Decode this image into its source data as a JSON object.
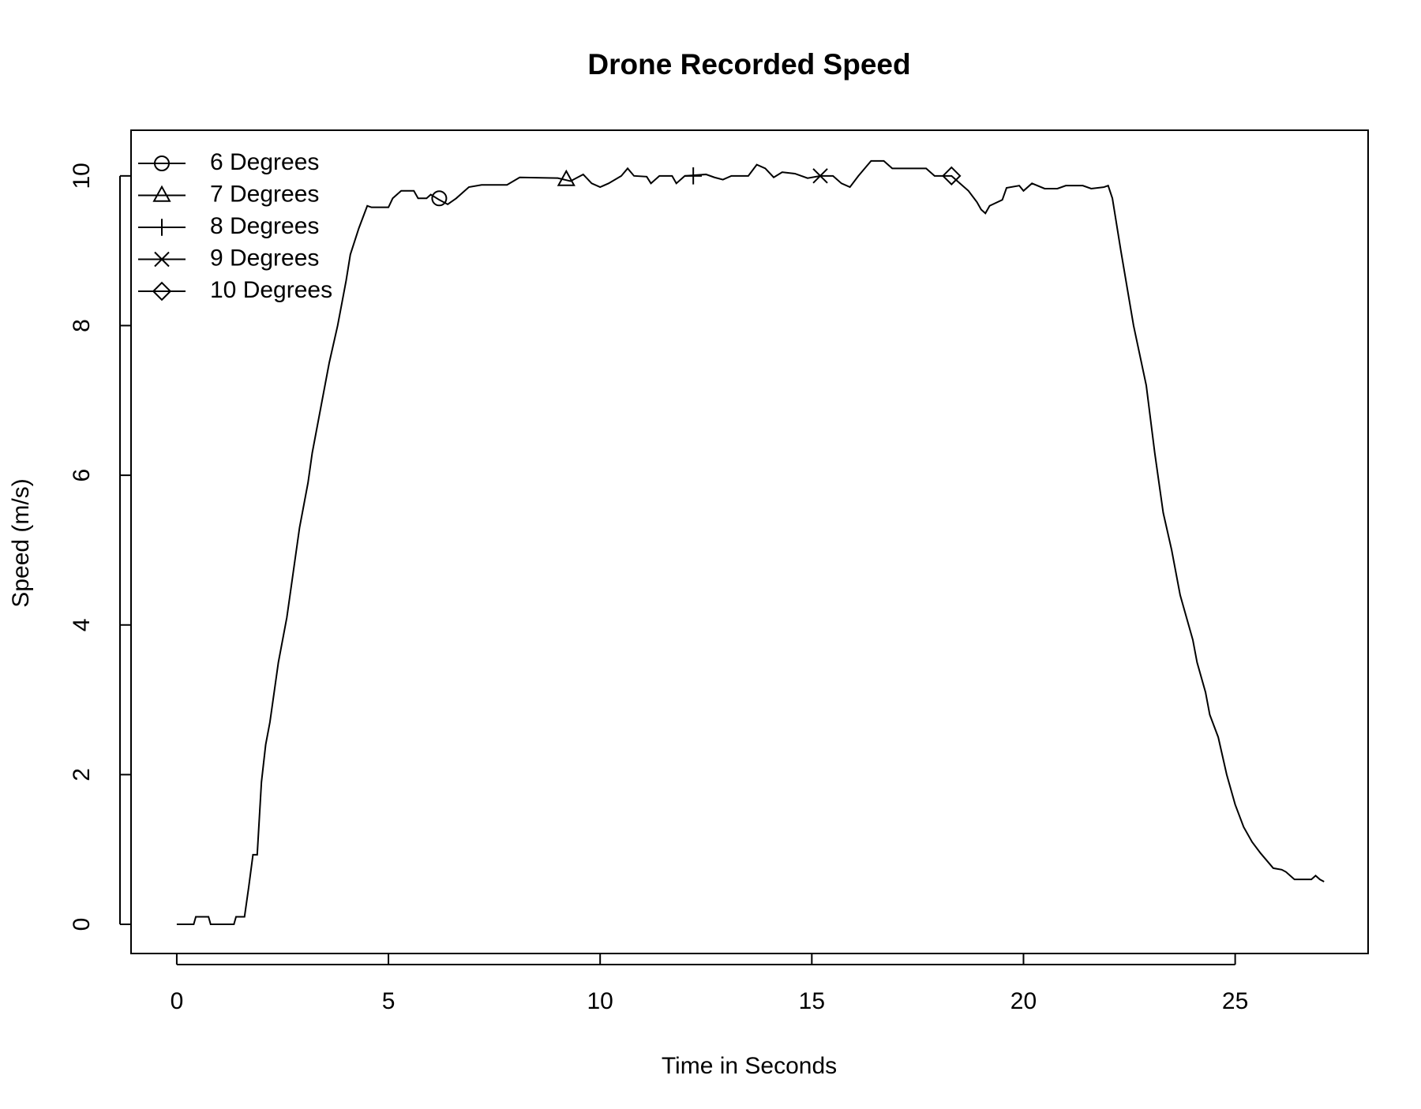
{
  "chart_data": {
    "type": "line",
    "title": "Drone Recorded Speed",
    "x_label": "Time in Seconds",
    "y_label": "Speed (m/s)",
    "color": "#000000",
    "x": [
      0,
      0.4,
      0.45,
      0.75,
      0.8,
      1.35,
      1.4,
      1.6,
      1.7,
      1.8,
      1.9,
      2.0,
      2.1,
      2.2,
      2.3,
      2.4,
      2.5,
      2.6,
      2.7,
      2.8,
      2.9,
      3.0,
      3.1,
      3.2,
      3.4,
      3.6,
      3.8,
      4.0,
      4.1,
      4.3,
      4.5,
      4.6,
      5.0,
      5.1,
      5.3,
      5.6,
      5.7,
      5.9,
      6.0,
      6.2,
      6.4,
      6.6,
      6.9,
      7.2,
      7.8,
      8.1,
      9.0,
      9.3,
      9.6,
      9.8,
      10.0,
      10.2,
      10.5,
      10.65,
      10.8,
      11.1,
      11.2,
      11.4,
      11.7,
      11.8,
      12.0,
      12.5,
      12.7,
      12.9,
      13.1,
      13.5,
      13.7,
      13.9,
      14.1,
      14.3,
      14.6,
      14.9,
      15.2,
      15.5,
      15.7,
      15.9,
      16.1,
      16.4,
      16.7,
      16.9,
      17.7,
      17.9,
      18.3,
      18.5,
      18.7,
      18.9,
      19.0,
      19.1,
      19.2,
      19.5,
      19.6,
      19.9,
      20.0,
      20.2,
      20.5,
      20.8,
      21.0,
      21.4,
      21.6,
      21.9,
      22.0,
      22.1,
      22.3,
      22.6,
      22.9,
      23.1,
      23.2,
      23.3,
      23.5,
      23.7,
      23.9,
      24.0,
      24.1,
      24.3,
      24.4,
      24.6,
      24.8,
      25.0,
      25.2,
      25.4,
      25.6,
      25.9,
      26.1,
      26.2,
      26.4,
      26.8,
      26.9,
      27.0,
      27.1
    ],
    "values": [
      0,
      0,
      0.1,
      0.1,
      0,
      0,
      0.1,
      0.1,
      0.5,
      0.93,
      0.93,
      1.9,
      2.4,
      2.7,
      3.1,
      3.5,
      3.8,
      4.1,
      4.5,
      4.9,
      5.3,
      5.6,
      5.9,
      6.3,
      6.9,
      7.5,
      8.0,
      8.6,
      8.95,
      9.3,
      9.6,
      9.58,
      9.58,
      9.7,
      9.8,
      9.8,
      9.7,
      9.7,
      9.75,
      9.68,
      9.62,
      9.7,
      9.85,
      9.88,
      9.88,
      9.98,
      9.97,
      9.93,
      10.02,
      9.9,
      9.85,
      9.9,
      10.0,
      10.1,
      10.0,
      9.99,
      9.9,
      10.0,
      10.0,
      9.9,
      10.0,
      10.02,
      9.98,
      9.95,
      10.0,
      10.0,
      10.15,
      10.1,
      9.98,
      10.05,
      10.03,
      9.97,
      10.0,
      10.0,
      9.9,
      9.85,
      10.0,
      10.2,
      10.2,
      10.1,
      10.1,
      10.0,
      10.0,
      9.9,
      9.8,
      9.65,
      9.55,
      9.5,
      9.6,
      9.68,
      9.84,
      9.87,
      9.8,
      9.9,
      9.83,
      9.83,
      9.87,
      9.87,
      9.83,
      9.85,
      9.87,
      9.7,
      9.0,
      8.0,
      7.2,
      6.3,
      5.9,
      5.5,
      5.0,
      4.4,
      4.0,
      3.8,
      3.5,
      3.1,
      2.8,
      2.5,
      2.0,
      1.6,
      1.3,
      1.1,
      0.95,
      0.75,
      0.73,
      0.7,
      0.6,
      0.6,
      0.65,
      0.6,
      0.57
    ],
    "series": [
      {
        "name": "6 Degrees",
        "marker": "circle",
        "x": [
          6.2
        ],
        "values": [
          9.7
        ]
      },
      {
        "name": "7 Degrees",
        "marker": "triangle",
        "x": [
          9.2
        ],
        "values": [
          9.95
        ]
      },
      {
        "name": "8 Degrees",
        "marker": "plus",
        "x": [
          12.2
        ],
        "values": [
          10.0
        ]
      },
      {
        "name": "9 Degrees",
        "marker": "cross",
        "x": [
          15.2
        ],
        "values": [
          10.0
        ]
      },
      {
        "name": "10 Degrees",
        "marker": "diamond",
        "x": [
          18.3
        ],
        "values": [
          10.0
        ]
      }
    ],
    "xlim": [
      -1.08,
      28.14
    ],
    "ylim": [
      -0.39,
      10.61
    ],
    "xticks": [
      0,
      5,
      10,
      15,
      20,
      25
    ],
    "yticks": [
      0,
      2,
      4,
      6,
      8,
      10
    ],
    "legend_position": "top-left",
    "grid": false
  }
}
